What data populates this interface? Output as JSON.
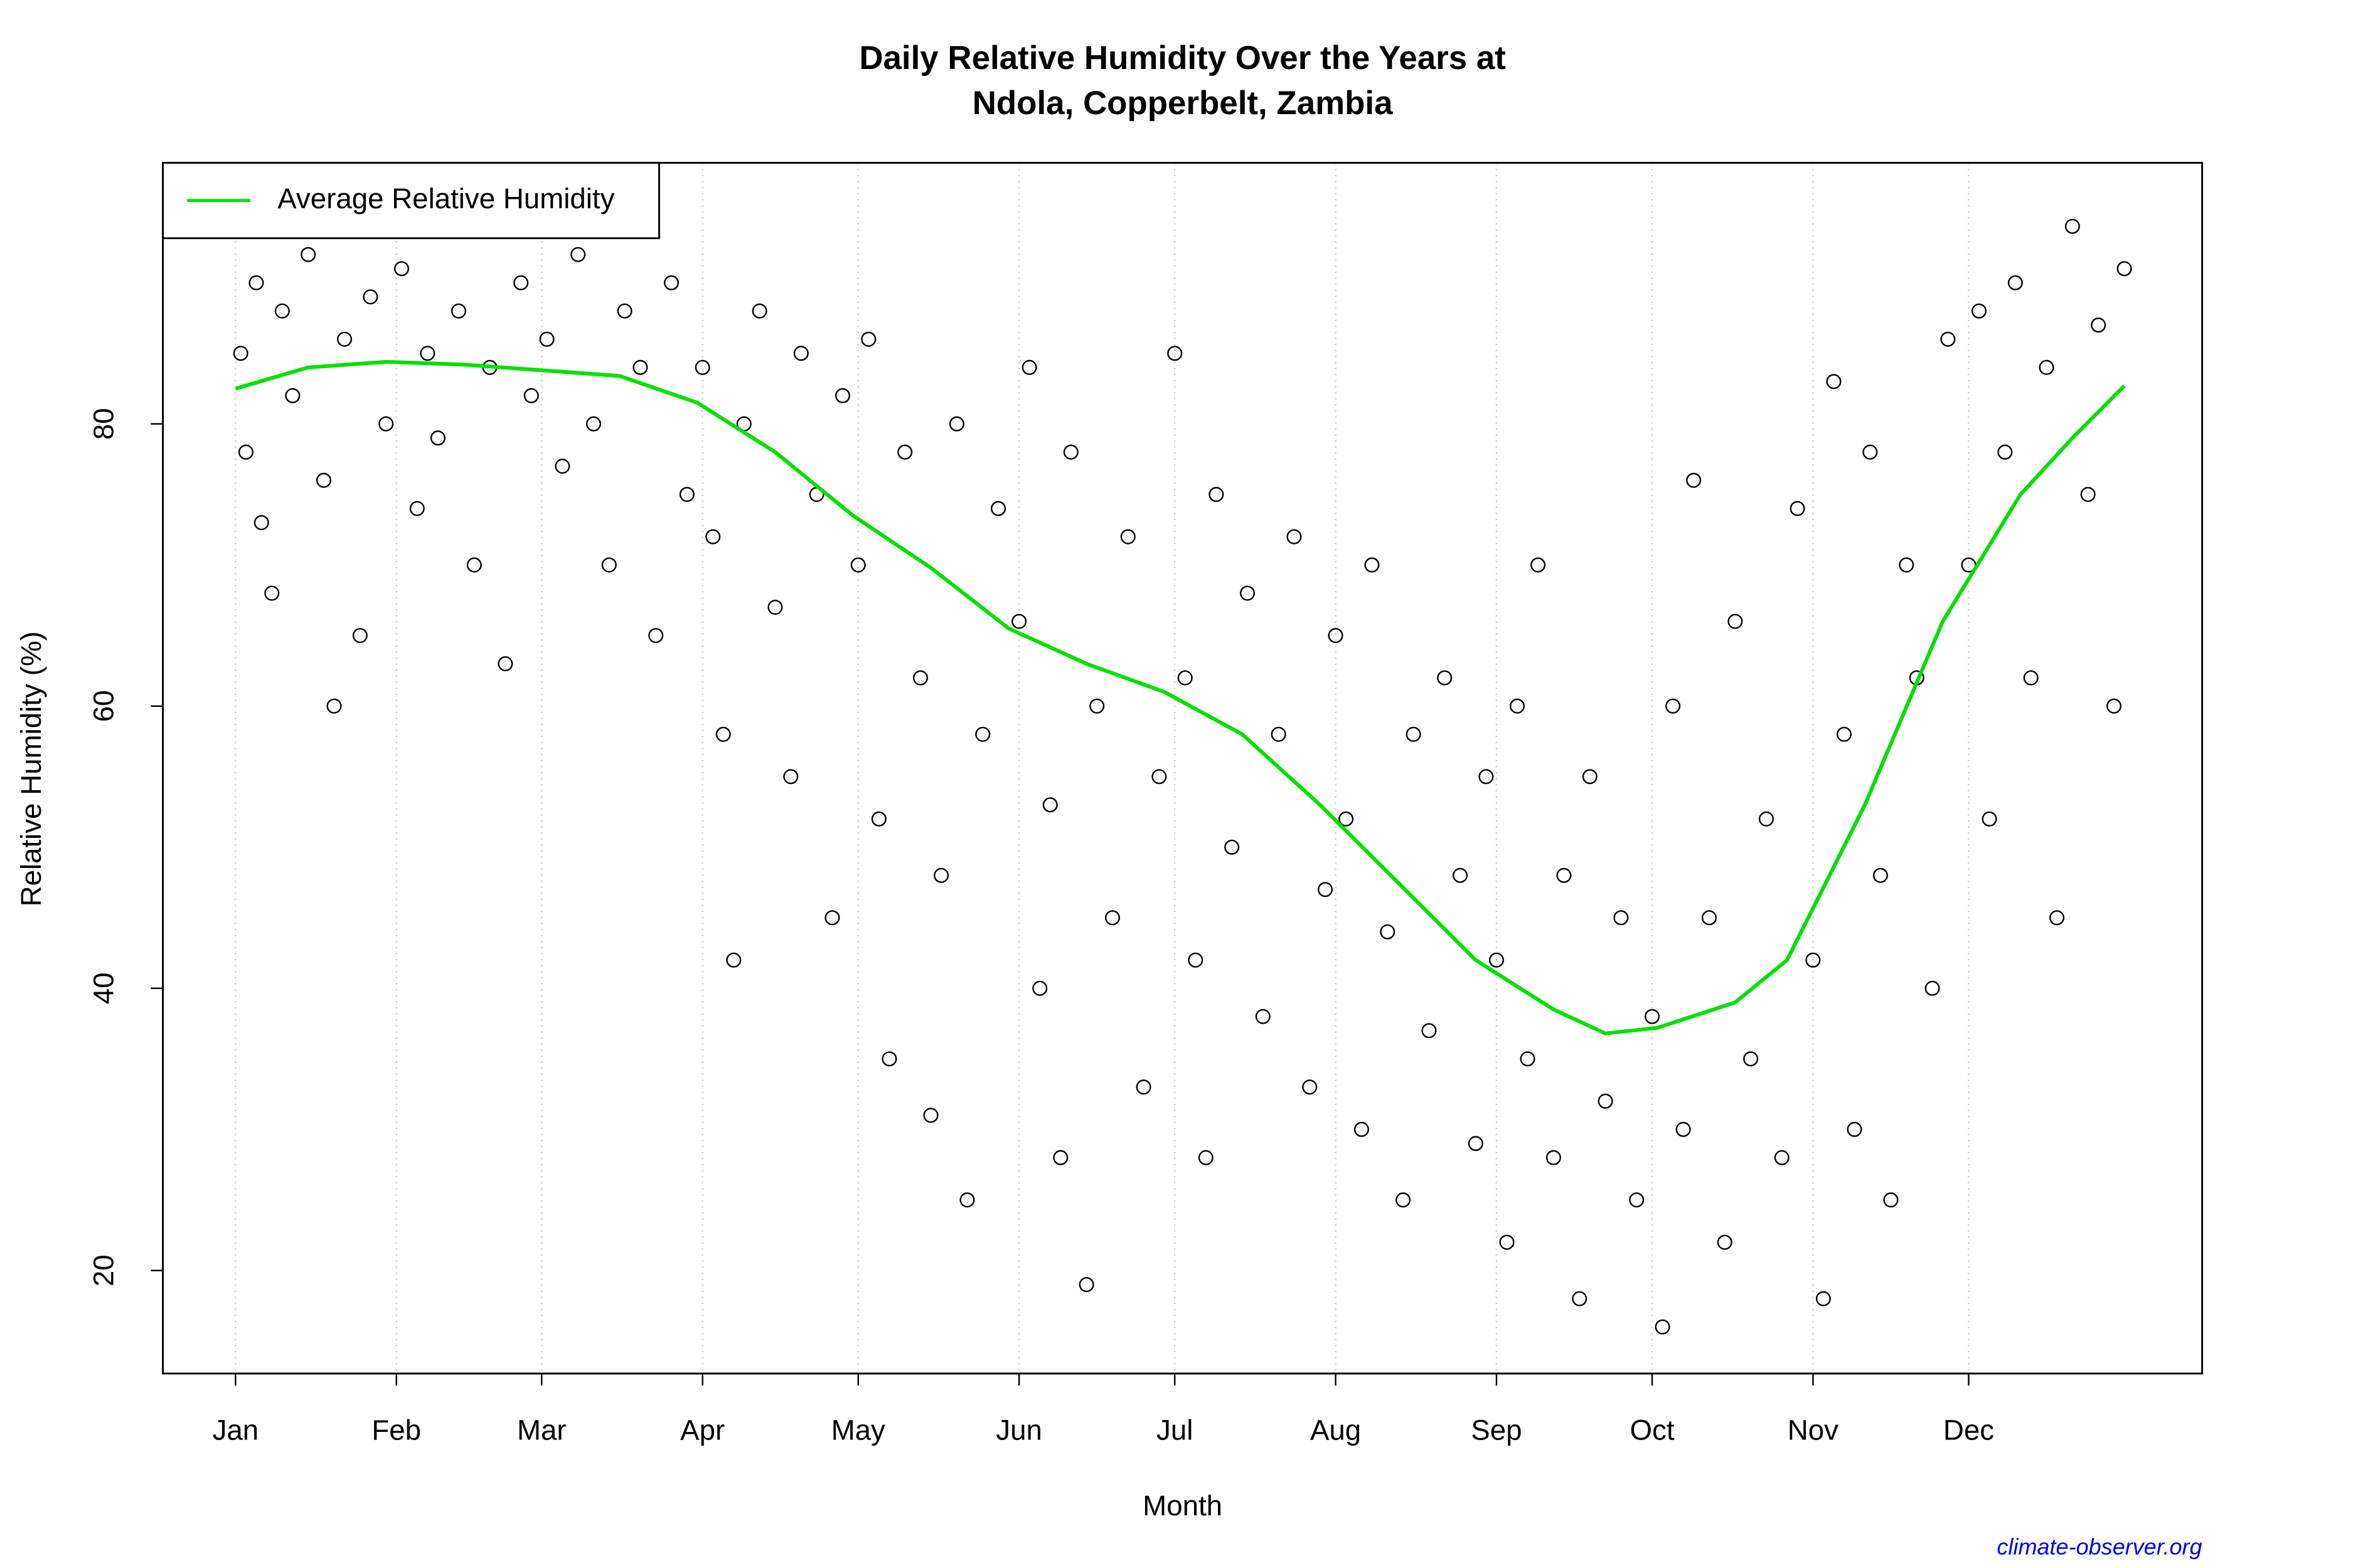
{
  "chart_data": {
    "type": "scatter",
    "title": [
      "Daily Relative Humidity Over the Years at",
      "Ndola, Copperbelt, Zambia"
    ],
    "x_label": "Month",
    "y_label": "Relative Humidity  (%)",
    "source": "climate-observer.org",
    "xlim": [
      -13,
      380
    ],
    "ylim": [
      12.7,
      98.5
    ],
    "xticks": [
      {
        "value": 1,
        "label": "Jan"
      },
      {
        "value": 32,
        "label": "Feb"
      },
      {
        "value": 60,
        "label": "Mar"
      },
      {
        "value": 91,
        "label": "Apr"
      },
      {
        "value": 121,
        "label": "May"
      },
      {
        "value": 152,
        "label": "Jun"
      },
      {
        "value": 182,
        "label": "Jul"
      },
      {
        "value": 213,
        "label": "Aug"
      },
      {
        "value": 244,
        "label": "Sep"
      },
      {
        "value": 274,
        "label": "Oct"
      },
      {
        "value": 305,
        "label": "Nov"
      },
      {
        "value": 335,
        "label": "Dec"
      }
    ],
    "yticks": [
      20,
      40,
      60,
      80
    ],
    "grid": true,
    "legend": "topleft",
    "points": {
      "color": "#000000",
      "x": [
        2,
        3,
        5,
        6,
        8,
        10,
        12,
        15,
        18,
        20,
        22,
        25,
        27,
        30,
        33,
        36,
        38,
        40,
        44,
        47,
        50,
        53,
        56,
        58,
        61,
        64,
        67,
        70,
        73,
        76,
        79,
        82,
        85,
        88,
        91,
        93,
        95,
        97,
        99,
        102,
        105,
        108,
        110,
        113,
        116,
        118,
        121,
        123,
        125,
        127,
        130,
        133,
        135,
        137,
        140,
        142,
        145,
        148,
        152,
        154,
        156,
        158,
        160,
        162,
        165,
        167,
        170,
        173,
        176,
        179,
        182,
        184,
        186,
        188,
        190,
        193,
        196,
        199,
        202,
        205,
        208,
        211,
        213,
        215,
        218,
        220,
        223,
        226,
        228,
        231,
        234,
        237,
        240,
        242,
        244,
        246,
        248,
        250,
        252,
        255,
        257,
        260,
        262,
        265,
        268,
        271,
        274,
        276,
        278,
        280,
        282,
        285,
        288,
        290,
        293,
        296,
        299,
        302,
        305,
        307,
        309,
        311,
        313,
        316,
        318,
        320,
        323,
        325,
        328,
        331,
        335,
        337,
        339,
        342,
        344,
        347,
        350,
        352,
        355,
        358,
        360,
        363,
        365
      ],
      "values": [
        85,
        78,
        90,
        73,
        68,
        88,
        82,
        92,
        76,
        60,
        86,
        65,
        89,
        80,
        91,
        74,
        85,
        79,
        88,
        70,
        84,
        63,
        90,
        82,
        86,
        77,
        92,
        80,
        70,
        88,
        84,
        65,
        90,
        75,
        84,
        72,
        58,
        42,
        80,
        88,
        67,
        55,
        85,
        75,
        45,
        82,
        70,
        86,
        52,
        35,
        78,
        62,
        31,
        48,
        80,
        25,
        58,
        74,
        66,
        84,
        40,
        53,
        28,
        78,
        19,
        60,
        45,
        72,
        33,
        55,
        85,
        62,
        42,
        28,
        75,
        50,
        68,
        38,
        58,
        72,
        33,
        47,
        65,
        52,
        30,
        70,
        44,
        25,
        58,
        37,
        62,
        48,
        29,
        55,
        42,
        22,
        60,
        35,
        70,
        28,
        48,
        18,
        55,
        32,
        45,
        25,
        38,
        16,
        60,
        30,
        76,
        45,
        22,
        66,
        35,
        52,
        28,
        74,
        42,
        18,
        83,
        58,
        30,
        78,
        48,
        25,
        70,
        62,
        40,
        86,
        70,
        88,
        52,
        78,
        90,
        62,
        84,
        45,
        94,
        75,
        87,
        60,
        91
      ]
    },
    "line": {
      "name": "Average Relative Humidity",
      "color": "#00e000",
      "x": [
        1,
        15,
        30,
        45,
        60,
        75,
        90,
        105,
        120,
        135,
        150,
        165,
        180,
        195,
        210,
        225,
        240,
        255,
        265,
        275,
        290,
        300,
        315,
        330,
        345,
        355,
        365
      ],
      "values": [
        82.5,
        84,
        84.4,
        84.2,
        83.8,
        83.4,
        81.5,
        78,
        73.5,
        69.8,
        65.5,
        63,
        61,
        58,
        53,
        47.5,
        42,
        38.5,
        36.8,
        37.2,
        39,
        42,
        53,
        66,
        75,
        79,
        82.7
      ]
    }
  }
}
